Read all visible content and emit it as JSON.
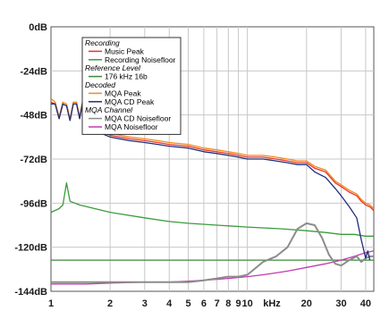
{
  "chart_data": {
    "type": "line",
    "title": "",
    "xlabel": "",
    "ylabel": "",
    "x_scale": "log",
    "xlim": [
      1,
      44
    ],
    "ylim": [
      -144,
      0
    ],
    "x_unit_label": "kHz",
    "x_ticks": [
      {
        "value": 1,
        "label": "1"
      },
      {
        "value": 2,
        "label": "2"
      },
      {
        "value": 3,
        "label": "3"
      },
      {
        "value": 4,
        "label": "4"
      },
      {
        "value": 5,
        "label": "5"
      },
      {
        "value": 6,
        "label": "6"
      },
      {
        "value": 7,
        "label": "7"
      },
      {
        "value": 8,
        "label": "8"
      },
      {
        "value": 9,
        "label": "9"
      },
      {
        "value": 10,
        "label": "10"
      },
      {
        "value": 20,
        "label": "20"
      },
      {
        "value": 30,
        "label": "30"
      },
      {
        "value": 40,
        "label": "40"
      }
    ],
    "y_ticks": [
      {
        "value": 0,
        "label": "0dB"
      },
      {
        "value": -24,
        "label": "-24dB"
      },
      {
        "value": -48,
        "label": "-48dB"
      },
      {
        "value": -72,
        "label": "-72dB"
      },
      {
        "value": -96,
        "label": "-96dB"
      },
      {
        "value": -120,
        "label": "-120dB"
      },
      {
        "value": -144,
        "label": "-144dB"
      }
    ],
    "grid": true,
    "legend": {
      "placement": "top-left",
      "entries": [
        {
          "kind": "group",
          "text": "Recording"
        },
        {
          "kind": "series",
          "series": 0
        },
        {
          "kind": "series",
          "series": 1
        },
        {
          "kind": "group",
          "text": "Reference Level"
        },
        {
          "kind": "series",
          "series": 2
        },
        {
          "kind": "group",
          "text": "Decoded"
        },
        {
          "kind": "series",
          "series": 3
        },
        {
          "kind": "series",
          "series": 4
        },
        {
          "kind": "group",
          "text": "MQA Channel"
        },
        {
          "kind": "series",
          "series": 5
        },
        {
          "kind": "series",
          "series": 6
        }
      ]
    },
    "series": [
      {
        "name": "Music Peak",
        "color": "#e8352a",
        "points": [
          [
            1,
            -41
          ],
          [
            1.05,
            -42
          ],
          [
            1.1,
            -50
          ],
          [
            1.15,
            -42
          ],
          [
            1.2,
            -43
          ],
          [
            1.25,
            -51
          ],
          [
            1.3,
            -42
          ],
          [
            1.35,
            -42
          ],
          [
            1.4,
            -50
          ],
          [
            1.45,
            -41
          ],
          [
            1.5,
            -43
          ],
          [
            1.6,
            -54
          ],
          [
            1.8,
            -57
          ],
          [
            2,
            -59
          ],
          [
            2.5,
            -61
          ],
          [
            3,
            -62
          ],
          [
            3.5,
            -63
          ],
          [
            4,
            -64
          ],
          [
            5,
            -65
          ],
          [
            6,
            -67
          ],
          [
            7,
            -68
          ],
          [
            8,
            -69
          ],
          [
            9,
            -70
          ],
          [
            10,
            -71
          ],
          [
            12,
            -71
          ],
          [
            14,
            -72
          ],
          [
            16,
            -73
          ],
          [
            18,
            -74
          ],
          [
            20,
            -74
          ],
          [
            22,
            -77
          ],
          [
            25,
            -79
          ],
          [
            28,
            -85
          ],
          [
            30,
            -87
          ],
          [
            33,
            -90
          ],
          [
            36,
            -92
          ],
          [
            38,
            -95
          ],
          [
            40,
            -97
          ],
          [
            42,
            -98
          ],
          [
            44,
            -100
          ]
        ]
      },
      {
        "name": "Recording Noisefloor",
        "color": "#3a9c3a",
        "points": [
          [
            1,
            -101
          ],
          [
            1.1,
            -99
          ],
          [
            1.15,
            -97
          ],
          [
            1.2,
            -85
          ],
          [
            1.25,
            -95
          ],
          [
            1.4,
            -97
          ],
          [
            2,
            -101
          ],
          [
            3,
            -104
          ],
          [
            4,
            -106
          ],
          [
            5,
            -107
          ],
          [
            7,
            -108
          ],
          [
            10,
            -109
          ],
          [
            15,
            -110
          ],
          [
            20,
            -111
          ],
          [
            25,
            -112
          ],
          [
            30,
            -113
          ],
          [
            35,
            -113
          ],
          [
            40,
            -114
          ],
          [
            44,
            -114
          ]
        ]
      },
      {
        "name": "176 kHz 16b",
        "color": "#3a8a3a",
        "points": [
          [
            1,
            -127
          ],
          [
            44,
            -127
          ]
        ]
      },
      {
        "name": "MQA Peak",
        "color": "#f08a1e",
        "points": [
          [
            1,
            -39
          ],
          [
            1.05,
            -41
          ],
          [
            1.1,
            -49
          ],
          [
            1.15,
            -41
          ],
          [
            1.2,
            -42
          ],
          [
            1.25,
            -50
          ],
          [
            1.3,
            -41
          ],
          [
            1.35,
            -41
          ],
          [
            1.4,
            -49
          ],
          [
            1.45,
            -40
          ],
          [
            1.5,
            -42
          ],
          [
            1.6,
            -53
          ],
          [
            1.8,
            -56
          ],
          [
            2,
            -58
          ],
          [
            2.5,
            -60
          ],
          [
            3,
            -61
          ],
          [
            3.5,
            -62
          ],
          [
            4,
            -63
          ],
          [
            5,
            -64
          ],
          [
            6,
            -66
          ],
          [
            7,
            -67
          ],
          [
            8,
            -68
          ],
          [
            9,
            -69
          ],
          [
            10,
            -70
          ],
          [
            12,
            -70
          ],
          [
            14,
            -71
          ],
          [
            16,
            -72
          ],
          [
            18,
            -73
          ],
          [
            20,
            -73
          ],
          [
            22,
            -76
          ],
          [
            25,
            -78
          ],
          [
            28,
            -84
          ],
          [
            30,
            -86
          ],
          [
            33,
            -89
          ],
          [
            36,
            -91
          ],
          [
            38,
            -94
          ],
          [
            40,
            -96
          ],
          [
            42,
            -97
          ],
          [
            44,
            -99
          ]
        ]
      },
      {
        "name": "MQA CD Peak",
        "color": "#1f2e7a",
        "points": [
          [
            1,
            -42
          ],
          [
            1.05,
            -42
          ],
          [
            1.1,
            -50
          ],
          [
            1.15,
            -42
          ],
          [
            1.2,
            -43
          ],
          [
            1.25,
            -51
          ],
          [
            1.3,
            -42
          ],
          [
            1.35,
            -42
          ],
          [
            1.4,
            -50
          ],
          [
            1.45,
            -41
          ],
          [
            1.5,
            -44
          ],
          [
            1.6,
            -55
          ],
          [
            1.8,
            -58
          ],
          [
            2,
            -60
          ],
          [
            2.5,
            -62
          ],
          [
            3,
            -63
          ],
          [
            3.5,
            -64
          ],
          [
            4,
            -65
          ],
          [
            5,
            -66
          ],
          [
            6,
            -68
          ],
          [
            7,
            -69
          ],
          [
            8,
            -70
          ],
          [
            9,
            -71
          ],
          [
            10,
            -72
          ],
          [
            12,
            -72
          ],
          [
            14,
            -73
          ],
          [
            16,
            -74
          ],
          [
            18,
            -75
          ],
          [
            20,
            -75
          ],
          [
            22,
            -79
          ],
          [
            25,
            -82
          ],
          [
            28,
            -88
          ],
          [
            30,
            -92
          ],
          [
            33,
            -98
          ],
          [
            36,
            -104
          ],
          [
            38,
            -116
          ],
          [
            40,
            -126
          ],
          [
            41,
            -122
          ],
          [
            42,
            -127
          ]
        ]
      },
      {
        "name": "MQA CD Noisefloor",
        "color": "#8c8c8c",
        "points": [
          [
            1,
            -139
          ],
          [
            2,
            -139
          ],
          [
            3,
            -139
          ],
          [
            4,
            -139
          ],
          [
            5,
            -139
          ],
          [
            6,
            -138
          ],
          [
            7,
            -137
          ],
          [
            8,
            -136
          ],
          [
            9,
            -136
          ],
          [
            10,
            -135
          ],
          [
            12,
            -128
          ],
          [
            14,
            -125
          ],
          [
            16,
            -120
          ],
          [
            18,
            -110
          ],
          [
            20,
            -107
          ],
          [
            22,
            -108
          ],
          [
            24,
            -115
          ],
          [
            26,
            -124
          ],
          [
            28,
            -129
          ],
          [
            30,
            -130
          ],
          [
            33,
            -127
          ],
          [
            36,
            -125
          ],
          [
            38,
            -128
          ],
          [
            40,
            -126
          ],
          [
            42,
            -125
          ],
          [
            44,
            -125
          ]
        ]
      },
      {
        "name": "MQA Noisefloor",
        "color": "#c23bb0",
        "points": [
          [
            1,
            -140
          ],
          [
            1.5,
            -140
          ],
          [
            2,
            -139.5
          ],
          [
            3,
            -139
          ],
          [
            4,
            -139
          ],
          [
            5,
            -138.5
          ],
          [
            6,
            -138
          ],
          [
            7,
            -137.5
          ],
          [
            8,
            -137
          ],
          [
            10,
            -136
          ],
          [
            12,
            -135
          ],
          [
            14,
            -134
          ],
          [
            16,
            -133
          ],
          [
            20,
            -131
          ],
          [
            25,
            -129
          ],
          [
            30,
            -127
          ],
          [
            35,
            -125
          ],
          [
            40,
            -123
          ],
          [
            44,
            -122
          ]
        ]
      }
    ]
  }
}
